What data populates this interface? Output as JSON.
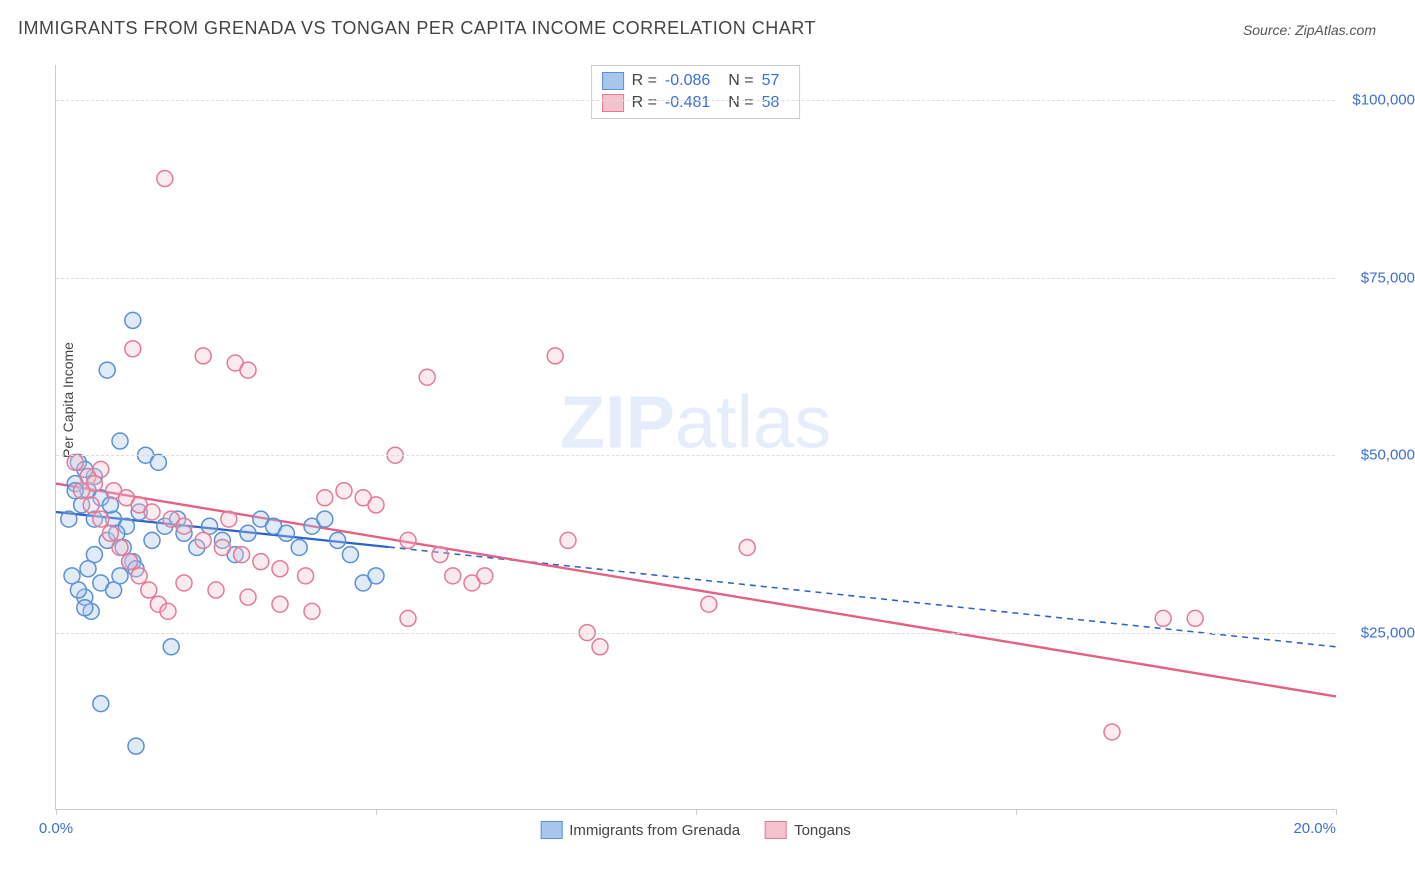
{
  "title": "IMMIGRANTS FROM GRENADA VS TONGAN PER CAPITA INCOME CORRELATION CHART",
  "source": "Source: ZipAtlas.com",
  "watermark_bold": "ZIP",
  "watermark_rest": "atlas",
  "y_axis_label": "Per Capita Income",
  "chart": {
    "type": "scatter",
    "background_color": "#ffffff",
    "grid_color": "#dddddd",
    "axis_color": "#cccccc",
    "tick_label_color": "#3a6fd8",
    "title_fontsize": 18,
    "label_fontsize": 14,
    "x_min": 0.0,
    "x_max": 20.0,
    "y_min": 0,
    "y_max": 105000,
    "y_ticks": [
      25000,
      50000,
      75000,
      100000
    ],
    "y_tick_labels": [
      "$25,000",
      "$50,000",
      "$75,000",
      "$100,000"
    ],
    "x_tick_positions": [
      0,
      5,
      10,
      15,
      20
    ],
    "x_tick_labels_shown": {
      "0": "0.0%",
      "20": "20.0%"
    },
    "marker_radius": 8,
    "marker_fill_opacity": 0.35,
    "marker_stroke_width": 1.5,
    "series": [
      {
        "id": "grenada",
        "label": "Immigrants from Grenada",
        "color_fill": "#a8c5ec",
        "color_stroke": "#5b8fd6",
        "correlation_r": "-0.086",
        "correlation_n": "57",
        "points": [
          [
            1.2,
            69000
          ],
          [
            0.8,
            62000
          ],
          [
            0.5,
            45000
          ],
          [
            0.6,
            47000
          ],
          [
            0.7,
            44000
          ],
          [
            0.4,
            43000
          ],
          [
            0.3,
            46000
          ],
          [
            0.35,
            49000
          ],
          [
            0.9,
            41000
          ],
          [
            1.1,
            40000
          ],
          [
            1.0,
            52000
          ],
          [
            1.4,
            50000
          ],
          [
            1.6,
            49000
          ],
          [
            1.3,
            42000
          ],
          [
            0.8,
            38000
          ],
          [
            0.6,
            36000
          ],
          [
            0.5,
            34000
          ],
          [
            0.7,
            32000
          ],
          [
            0.9,
            31000
          ],
          [
            1.0,
            33000
          ],
          [
            1.2,
            35000
          ],
          [
            1.5,
            38000
          ],
          [
            1.7,
            40000
          ],
          [
            1.9,
            41000
          ],
          [
            2.0,
            39000
          ],
          [
            2.2,
            37000
          ],
          [
            2.4,
            40000
          ],
          [
            2.6,
            38000
          ],
          [
            2.8,
            36000
          ],
          [
            3.0,
            39000
          ],
          [
            3.2,
            41000
          ],
          [
            3.4,
            40000
          ],
          [
            3.6,
            39000
          ],
          [
            3.8,
            37000
          ],
          [
            4.0,
            40000
          ],
          [
            4.2,
            41000
          ],
          [
            4.4,
            38000
          ],
          [
            4.6,
            36000
          ],
          [
            4.8,
            32000
          ],
          [
            5.0,
            33000
          ],
          [
            1.8,
            23000
          ],
          [
            0.55,
            28000
          ],
          [
            0.45,
            30000
          ],
          [
            0.35,
            31000
          ],
          [
            0.25,
            33000
          ],
          [
            0.2,
            41000
          ],
          [
            0.3,
            45000
          ],
          [
            0.45,
            48000
          ],
          [
            0.6,
            41000
          ],
          [
            0.85,
            43000
          ],
          [
            0.95,
            39000
          ],
          [
            1.05,
            37000
          ],
          [
            1.15,
            35000
          ],
          [
            1.25,
            34000
          ],
          [
            0.7,
            15000
          ],
          [
            1.25,
            9000
          ],
          [
            0.45,
            28500
          ]
        ],
        "regression": {
          "solid_from_x": 0.0,
          "solid_to_x": 5.2,
          "y_at_x0": 42000,
          "y_at_x20": 23000,
          "stroke_solid": "#2d62c9",
          "stroke_width": 2.2,
          "dash_pattern": "6 5"
        }
      },
      {
        "id": "tongans",
        "label": "Tongans",
        "color_fill": "#f3c2cd",
        "color_stroke": "#e37b96",
        "correlation_r": "-0.481",
        "correlation_n": "58",
        "points": [
          [
            1.7,
            89000
          ],
          [
            2.3,
            64000
          ],
          [
            1.2,
            65000
          ],
          [
            2.8,
            63000
          ],
          [
            3.0,
            62000
          ],
          [
            0.3,
            49000
          ],
          [
            0.5,
            47000
          ],
          [
            0.7,
            48000
          ],
          [
            0.6,
            46000
          ],
          [
            0.9,
            45000
          ],
          [
            1.1,
            44000
          ],
          [
            1.3,
            43000
          ],
          [
            1.5,
            42000
          ],
          [
            1.8,
            41000
          ],
          [
            2.0,
            40000
          ],
          [
            2.3,
            38000
          ],
          [
            2.6,
            37000
          ],
          [
            2.9,
            36000
          ],
          [
            3.2,
            35000
          ],
          [
            3.5,
            34000
          ],
          [
            3.9,
            33000
          ],
          [
            4.2,
            44000
          ],
          [
            4.5,
            45000
          ],
          [
            4.8,
            44000
          ],
          [
            5.0,
            43000
          ],
          [
            5.3,
            50000
          ],
          [
            5.5,
            38000
          ],
          [
            5.8,
            61000
          ],
          [
            6.0,
            36000
          ],
          [
            6.2,
            33000
          ],
          [
            6.5,
            32000
          ],
          [
            7.8,
            64000
          ],
          [
            8.0,
            38000
          ],
          [
            8.3,
            25000
          ],
          [
            8.5,
            23000
          ],
          [
            10.2,
            29000
          ],
          [
            10.8,
            37000
          ],
          [
            17.3,
            27000
          ],
          [
            17.8,
            27000
          ],
          [
            16.5,
            11000
          ],
          [
            0.4,
            45000
          ],
          [
            0.55,
            43000
          ],
          [
            0.7,
            41000
          ],
          [
            0.85,
            39000
          ],
          [
            1.0,
            37000
          ],
          [
            1.15,
            35000
          ],
          [
            1.3,
            33000
          ],
          [
            1.45,
            31000
          ],
          [
            1.6,
            29000
          ],
          [
            1.75,
            28000
          ],
          [
            2.0,
            32000
          ],
          [
            2.5,
            31000
          ],
          [
            3.0,
            30000
          ],
          [
            3.5,
            29000
          ],
          [
            4.0,
            28000
          ],
          [
            5.5,
            27000
          ],
          [
            6.7,
            33000
          ],
          [
            2.7,
            41000
          ]
        ],
        "regression": {
          "solid_from_x": 0.0,
          "solid_to_x": 20.0,
          "y_at_x0": 46000,
          "y_at_x20": 16000,
          "stroke_solid": "#e26184",
          "stroke_width": 2.4,
          "dash_pattern": null
        }
      }
    ]
  },
  "legend_labels": {
    "r_label": "R =",
    "n_label": "N ="
  }
}
